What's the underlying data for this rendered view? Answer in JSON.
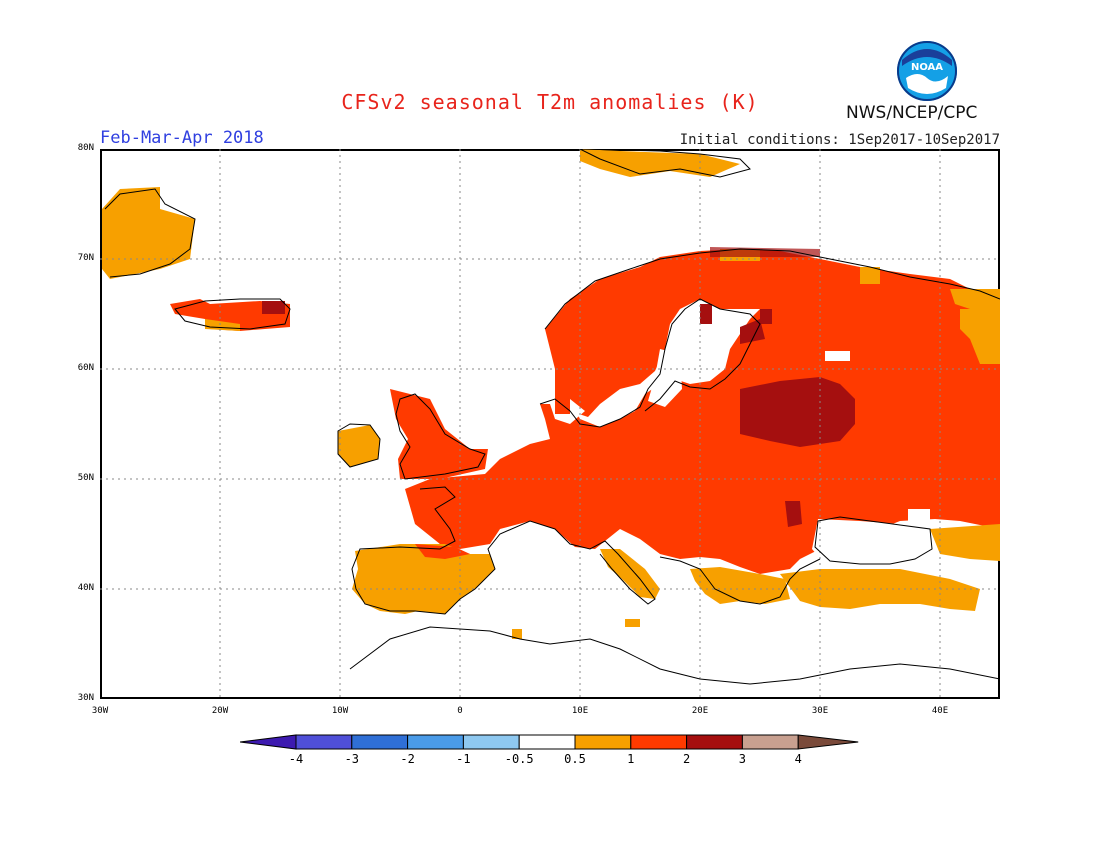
{
  "header": {
    "title": "CFSv2 seasonal T2m anomalies (K)",
    "period": "Feb-Mar-Apr 2018",
    "initial_conditions": "Initial conditions: 1Sep2017-10Sep2017",
    "agency": "NWS/NCEP/CPC",
    "logo_text": "NOAA"
  },
  "map": {
    "lat_labels": [
      "80N",
      "70N",
      "60N",
      "50N",
      "40N",
      "30N"
    ],
    "lon_labels": [
      "30W",
      "20W",
      "10W",
      "0",
      "10E",
      "20E",
      "30E",
      "40E"
    ],
    "extent": {
      "lon": [
        -30,
        45
      ],
      "lat": [
        30,
        80
      ]
    }
  },
  "colorbar": {
    "labels": [
      "-4",
      "-3",
      "-2",
      "-1",
      "-0.5",
      "0.5",
      "1",
      "2",
      "3",
      "4"
    ],
    "colors": [
      "#3d1ab0",
      "#4f4fd8",
      "#2f6fd6",
      "#4a9be8",
      "#8ec8f0",
      "#ffffff",
      "#f7a000",
      "#ff3a00",
      "#a50f0f",
      "#c8a090",
      "#7a4a3a"
    ]
  }
}
